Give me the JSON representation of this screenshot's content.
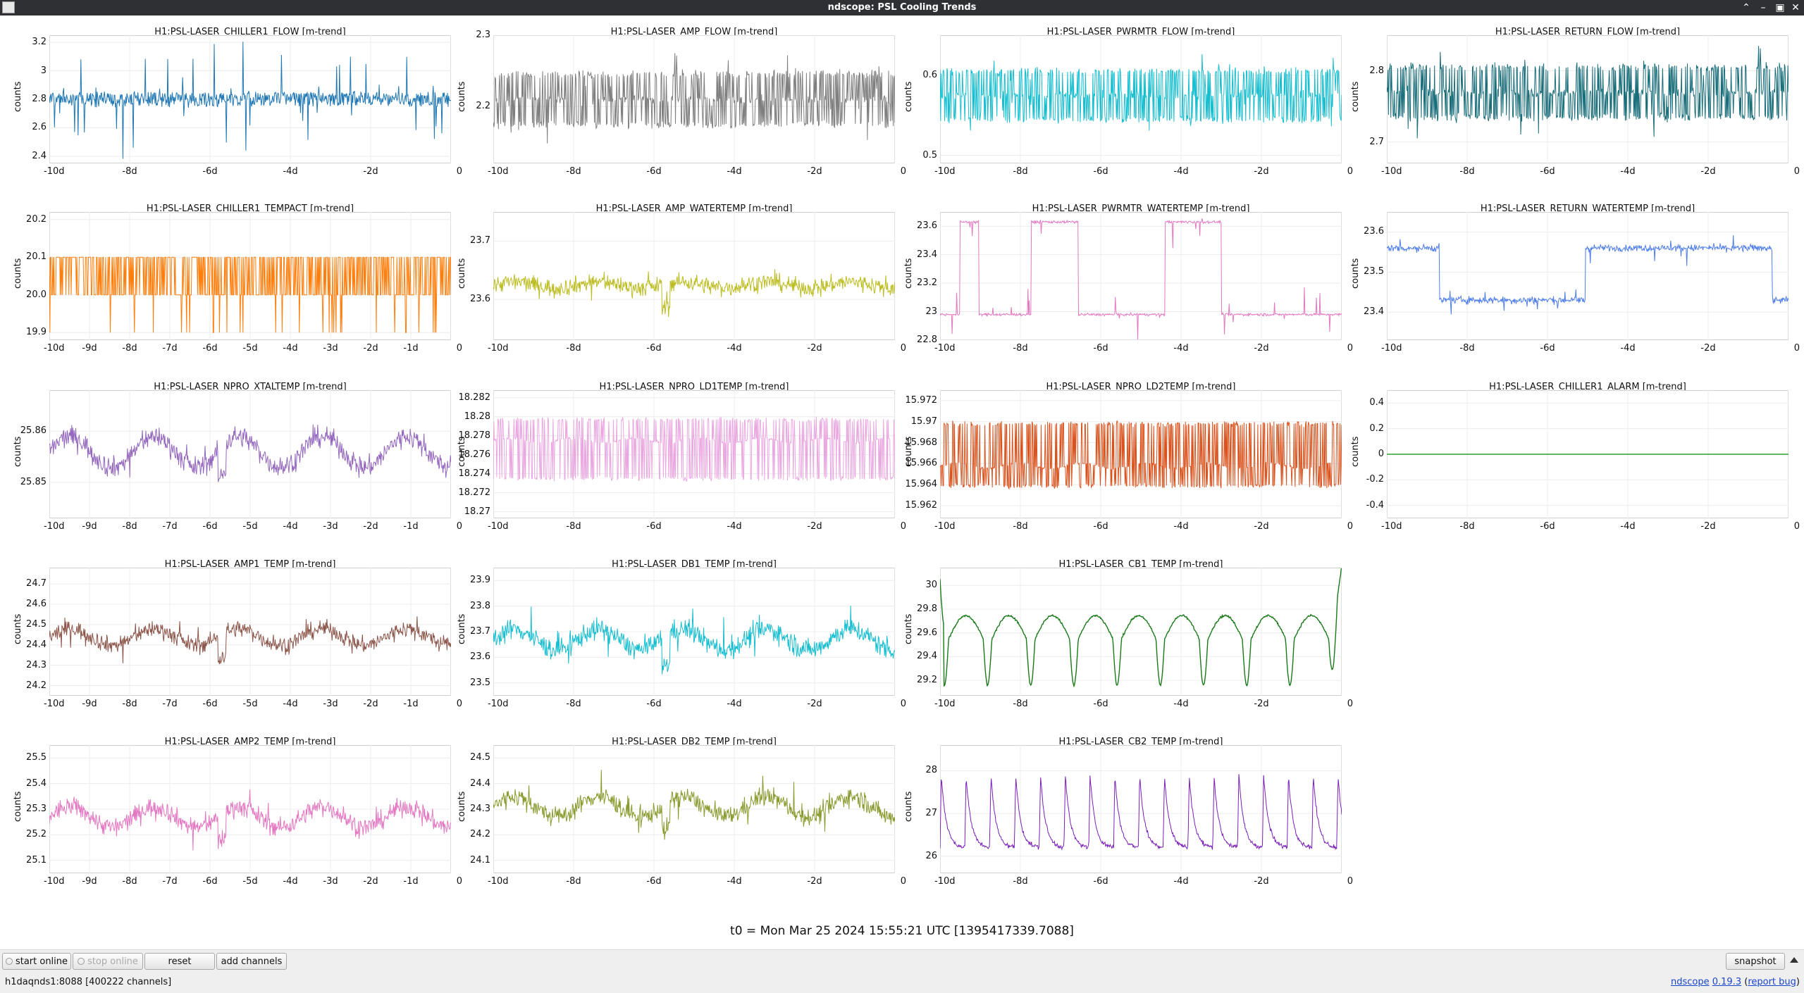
{
  "window": {
    "title": "ndscope: PSL Cooling Trends"
  },
  "footer": {
    "t0": "t0 = Mon Mar 25 2024 15:55:21 UTC [1395417339.7088]"
  },
  "toolbar": {
    "start_online": "start online",
    "stop_online": "stop online",
    "reset": "reset",
    "add_channels": "add channels",
    "snapshot": "snapshot"
  },
  "status": {
    "server": "h1daqnds1:8088  [400222 channels]",
    "app_name": "ndscope",
    "version": "0.19.3",
    "report_bug": "report bug"
  },
  "chart_data": [
    {
      "type": "line",
      "title": "H1:PSL-LASER_CHILLER1_FLOW [m-trend]",
      "ylabel": "counts",
      "color": "#1f77b4",
      "yticks": [
        "3.2",
        "3",
        "2.8",
        "2.6",
        "2.4"
      ],
      "xticks": [
        "-10d",
        "-8d",
        "-6d",
        "-4d",
        "-2d",
        "0"
      ],
      "xlim": [
        -10,
        0
      ],
      "ylim": [
        2.35,
        3.25
      ],
      "pattern": "band",
      "base": 2.8,
      "amp": 0.05,
      "noise": 0.05,
      "spikes": 0.15
    },
    {
      "type": "line",
      "title": "H1:PSL-LASER_AMP_FLOW [m-trend]",
      "ylabel": "counts",
      "color": "#7f7f7f",
      "yticks": [
        "2.3",
        "2.2"
      ],
      "xticks": [
        "-10d",
        "-8d",
        "-6d",
        "-4d",
        "-2d",
        "0"
      ],
      "xlim": [
        -10,
        0
      ],
      "ylim": [
        2.12,
        2.3
      ],
      "pattern": "bands3",
      "base": 2.21,
      "amp": 0.035,
      "noise": 0.01,
      "spikes": 0.015
    },
    {
      "type": "line",
      "title": "H1:PSL-LASER_PWRMTR_FLOW [m-trend]",
      "ylabel": "counts",
      "color": "#17becf",
      "yticks": [
        "0.6",
        "0.5"
      ],
      "xticks": [
        "-10d",
        "-8d",
        "-6d",
        "-4d",
        "-2d",
        "0"
      ],
      "xlim": [
        -10,
        0
      ],
      "ylim": [
        0.49,
        0.65
      ],
      "pattern": "bands3",
      "base": 0.575,
      "amp": 0.03,
      "noise": 0.008,
      "spikes": 0.012
    },
    {
      "type": "line",
      "title": "H1:PSL-LASER_RETURN_FLOW [m-trend]",
      "ylabel": "counts",
      "color": "#1a6e7a",
      "yticks": [
        "2.8",
        "2.7"
      ],
      "xticks": [
        "-10d",
        "-8d",
        "-6d",
        "-4d",
        "-2d",
        "0"
      ],
      "xlim": [
        -10,
        0
      ],
      "ylim": [
        2.67,
        2.85
      ],
      "pattern": "bands3",
      "base": 2.77,
      "amp": 0.035,
      "noise": 0.01,
      "spikes": 0.015
    },
    {
      "type": "line",
      "title": "H1:PSL-LASER_CHILLER1_TEMPACT [m-trend]",
      "ylabel": "counts",
      "color": "#ff7f0e",
      "yticks": [
        "20.2",
        "20.1",
        "20.0",
        "19.9"
      ],
      "xticks": [
        "-10d",
        "-9d",
        "-8d",
        "-7d",
        "-6d",
        "-5d",
        "-4d",
        "-3d",
        "-2d",
        "-1d",
        "0"
      ],
      "xlim": [
        -10,
        0
      ],
      "ylim": [
        19.88,
        20.22
      ],
      "pattern": "digital",
      "base": 20.0,
      "amp": 0.1,
      "noise": 0.0,
      "spikes": 0.02
    },
    {
      "type": "line",
      "title": "H1:PSL-LASER_AMP_WATERTEMP [m-trend]",
      "ylabel": "counts",
      "color": "#bcbd22",
      "yticks": [
        "23.7",
        "23.6"
      ],
      "xticks": [
        "-10d",
        "-8d",
        "-6d",
        "-4d",
        "-2d",
        "0"
      ],
      "xlim": [
        -10,
        0
      ],
      "ylim": [
        23.53,
        23.75
      ],
      "pattern": "noisy",
      "base": 23.625,
      "amp": 0.005,
      "noise": 0.018,
      "spikes": 0.03
    },
    {
      "type": "line",
      "title": "H1:PSL-LASER_PWRMTR_WATERTEMP [m-trend]",
      "ylabel": "counts",
      "color": "#e377c2",
      "yticks": [
        "23.6",
        "23.4",
        "23.2",
        "23",
        "22.8"
      ],
      "xticks": [
        "-10d",
        "-8d",
        "-6d",
        "-4d",
        "-2d",
        "0"
      ],
      "xlim": [
        -10,
        0
      ],
      "ylim": [
        22.8,
        23.7
      ],
      "pattern": "steps",
      "base": 22.98,
      "amp": 0.65,
      "noise": 0.015,
      "spikes": 0.02
    },
    {
      "type": "line",
      "title": "H1:PSL-LASER_RETURN_WATERTEMP [m-trend]",
      "ylabel": "counts",
      "color": "#4f7ee8",
      "yticks": [
        "23.6",
        "23.5",
        "23.4"
      ],
      "xticks": [
        "-10d",
        "-8d",
        "-6d",
        "-4d",
        "-2d",
        "0"
      ],
      "xlim": [
        -10,
        0
      ],
      "ylim": [
        23.33,
        23.65
      ],
      "pattern": "steps",
      "base": 23.43,
      "amp": 0.13,
      "noise": 0.015,
      "spikes": 0.02
    },
    {
      "type": "line",
      "title": "H1:PSL-LASER_NPRO_XTALTEMP [m-trend]",
      "ylabel": "counts",
      "color": "#9467bd",
      "yticks": [
        "25.86",
        "25.85"
      ],
      "xticks": [
        "-10d",
        "-9d",
        "-8d",
        "-7d",
        "-6d",
        "-5d",
        "-4d",
        "-3d",
        "-2d",
        "-1d",
        "0"
      ],
      "xlim": [
        -10,
        0
      ],
      "ylim": [
        25.843,
        25.868
      ],
      "pattern": "noisy",
      "base": 25.856,
      "amp": 0.003,
      "noise": 0.0025,
      "spikes": 0.004
    },
    {
      "type": "line",
      "title": "H1:PSL-LASER_NPRO_LD1TEMP [m-trend]",
      "ylabel": "counts",
      "color": "#e9a8e0",
      "yticks": [
        "18.282",
        "18.28",
        "18.278",
        "18.276",
        "18.274",
        "18.272",
        "18.27"
      ],
      "xticks": [
        "-10d",
        "-8d",
        "-6d",
        "-4d",
        "-2d",
        "0"
      ],
      "xlim": [
        -10,
        0
      ],
      "ylim": [
        18.2693,
        18.2828
      ],
      "pattern": "ld",
      "base": 18.2775,
      "amp": 0.0,
      "noise": 0.0002,
      "spikes": 0.0,
      "bands": [
        18.2797,
        18.2735
      ]
    },
    {
      "type": "line",
      "title": "H1:PSL-LASER_NPRO_LD2TEMP [m-trend]",
      "ylabel": "counts",
      "color": "#d9531e",
      "yticks": [
        "15.972",
        "15.97",
        "15.968",
        "15.966",
        "15.964",
        "15.962"
      ],
      "xticks": [
        "-10d",
        "-8d",
        "-6d",
        "-4d",
        "-2d",
        "0"
      ],
      "xlim": [
        -10,
        0
      ],
      "ylim": [
        15.9608,
        15.973
      ],
      "pattern": "ld",
      "base": 15.9658,
      "amp": 0.0,
      "noise": 0.0002,
      "spikes": 0.0,
      "bands": [
        15.9698,
        15.9639
      ]
    },
    {
      "type": "line",
      "title": "H1:PSL-LASER_CHILLER1_ALARM [m-trend]",
      "ylabel": "counts",
      "color": "#2ca02c",
      "yticks": [
        "0.4",
        "0.2",
        "0",
        "-0.2",
        "-0.4"
      ],
      "xticks": [
        "-10d",
        "-8d",
        "-6d",
        "-4d",
        "-2d",
        "0"
      ],
      "xlim": [
        -10,
        0
      ],
      "ylim": [
        -0.5,
        0.5
      ],
      "pattern": "flat",
      "base": 0,
      "amp": 0,
      "noise": 0,
      "spikes": 0
    },
    {
      "type": "line",
      "title": "H1:PSL-LASER_AMP1_TEMP [m-trend]",
      "ylabel": "counts",
      "color": "#8c564b",
      "yticks": [
        "24.7",
        "24.6",
        "24.5",
        "24.4",
        "24.3",
        "24.2"
      ],
      "xticks": [
        "-10d",
        "-9d",
        "-8d",
        "-7d",
        "-6d",
        "-5d",
        "-4d",
        "-3d",
        "-2d",
        "-1d",
        "0"
      ],
      "xlim": [
        -10,
        0
      ],
      "ylim": [
        24.15,
        24.78
      ],
      "pattern": "noisy",
      "base": 24.44,
      "amp": 0.04,
      "noise": 0.05,
      "spikes": 0.1
    },
    {
      "type": "line",
      "title": "H1:PSL-LASER_DB1_TEMP [m-trend]",
      "ylabel": "counts",
      "color": "#17becf",
      "yticks": [
        "23.9",
        "23.8",
        "23.7",
        "23.6",
        "23.5"
      ],
      "xticks": [
        "-10d",
        "-8d",
        "-6d",
        "-4d",
        "-2d",
        "0"
      ],
      "xlim": [
        -10,
        0
      ],
      "ylim": [
        23.45,
        23.95
      ],
      "pattern": "noisy",
      "base": 23.67,
      "amp": 0.04,
      "noise": 0.05,
      "spikes": 0.1
    },
    {
      "type": "line",
      "title": "H1:PSL-LASER_CB1_TEMP [m-trend]",
      "ylabel": "counts",
      "color": "#1a7a1a",
      "yticks": [
        "30",
        "29.8",
        "29.6",
        "29.4",
        "29.2"
      ],
      "xticks": [
        "-10d",
        "-8d",
        "-6d",
        "-4d",
        "-2d",
        "0"
      ],
      "xlim": [
        -10,
        0
      ],
      "ylim": [
        29.07,
        30.15
      ],
      "pattern": "diurnal",
      "base": 29.55,
      "amp": 0.28,
      "noise": 0.015,
      "spikes": 0.0
    },
    {
      "type": "line",
      "title": "H1:PSL-LASER_AMP2_TEMP [m-trend]",
      "ylabel": "counts",
      "color": "#e377c2",
      "yticks": [
        "25.5",
        "25.4",
        "25.3",
        "25.2",
        "25.1"
      ],
      "xticks": [
        "-10d",
        "-9d",
        "-8d",
        "-7d",
        "-6d",
        "-5d",
        "-4d",
        "-3d",
        "-2d",
        "-1d",
        "0"
      ],
      "xlim": [
        -10,
        0
      ],
      "ylim": [
        25.05,
        25.55
      ],
      "pattern": "noisy",
      "base": 25.27,
      "amp": 0.04,
      "noise": 0.045,
      "spikes": 0.09
    },
    {
      "type": "line",
      "title": "H1:PSL-LASER_DB2_TEMP [m-trend]",
      "ylabel": "counts",
      "color": "#8a9a2e",
      "yticks": [
        "24.5",
        "24.4",
        "24.3",
        "24.2",
        "24.1"
      ],
      "xticks": [
        "-10d",
        "-8d",
        "-6d",
        "-4d",
        "-2d",
        "0"
      ],
      "xlim": [
        -10,
        0
      ],
      "ylim": [
        24.05,
        24.55
      ],
      "pattern": "noisy",
      "base": 24.31,
      "amp": 0.04,
      "noise": 0.045,
      "spikes": 0.09
    },
    {
      "type": "line",
      "title": "H1:PSL-LASER_CB2_TEMP [m-trend]",
      "ylabel": "counts",
      "color": "#7b1fb8",
      "yticks": [
        "28",
        "27",
        "26"
      ],
      "xticks": [
        "-10d",
        "-8d",
        "-6d",
        "-4d",
        "-2d",
        "0"
      ],
      "xlim": [
        -10,
        0
      ],
      "ylim": [
        25.6,
        28.6
      ],
      "pattern": "sawtooth",
      "base": 26.2,
      "amp": 1.9,
      "noise": 0.06,
      "spikes": 0.0
    }
  ]
}
